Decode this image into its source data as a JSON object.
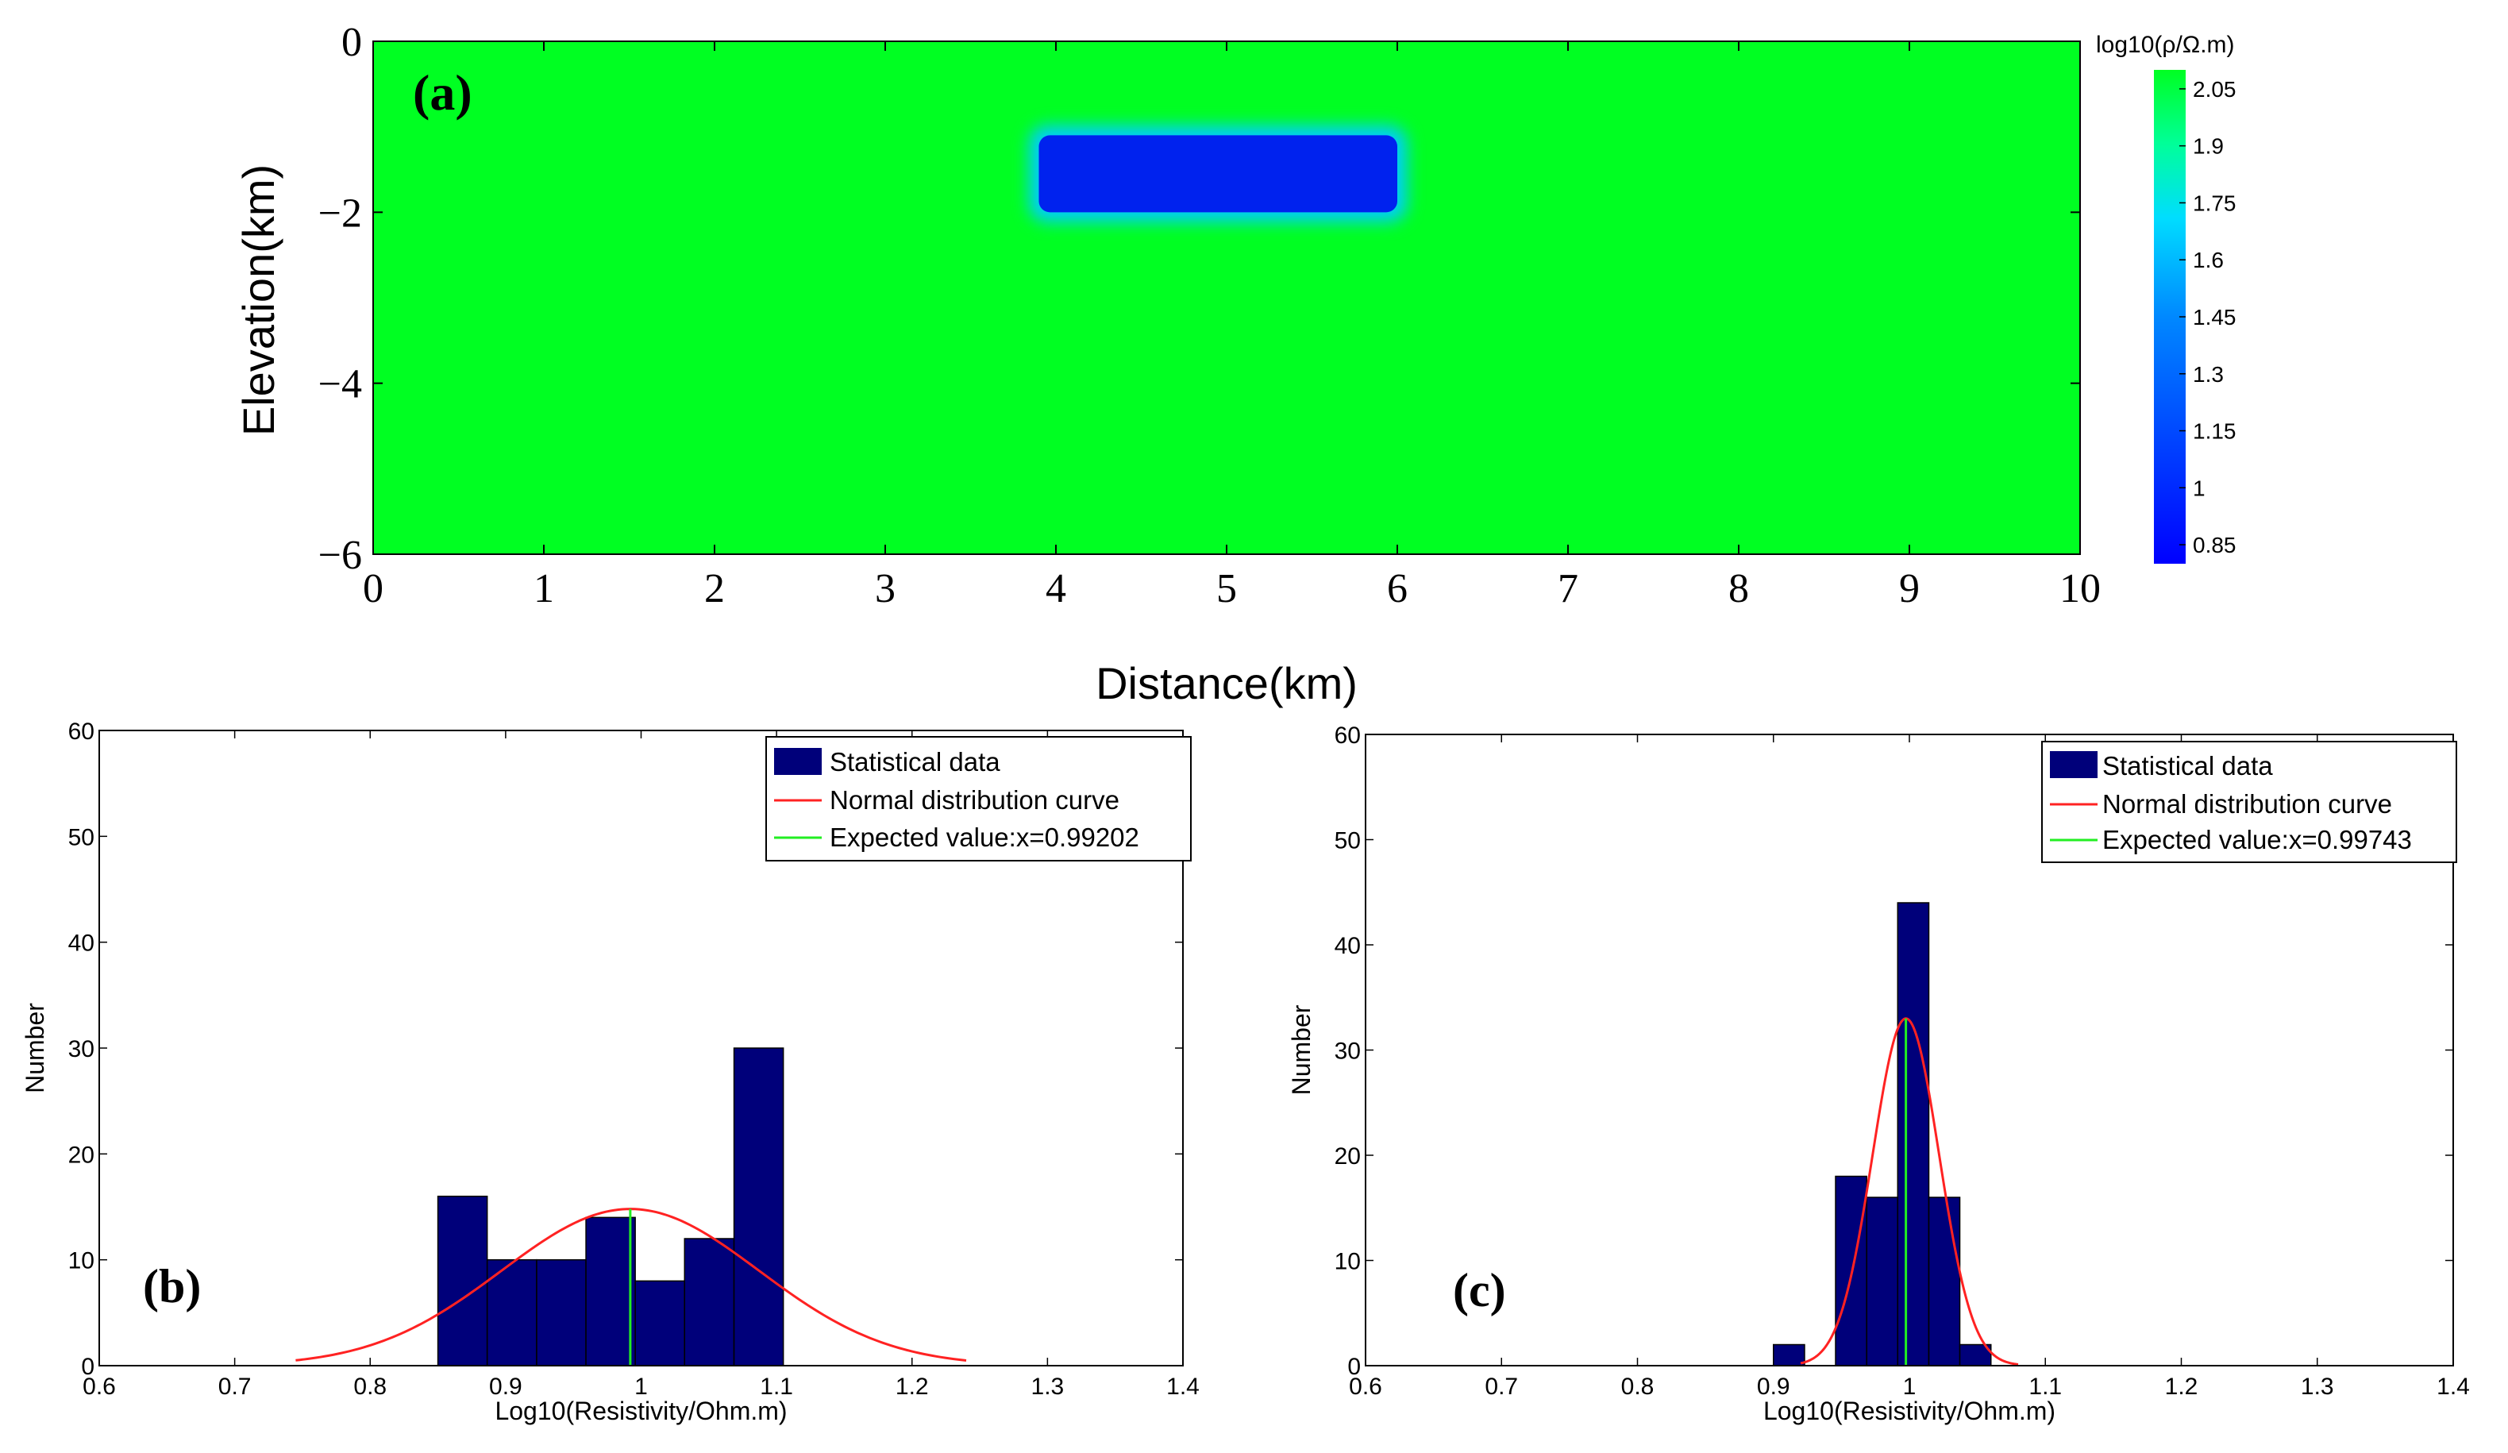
{
  "chart_data": [
    {
      "type": "heatmap",
      "panel": "(a)",
      "xlabel": "Distance(km)",
      "ylabel": "Elevation(km)",
      "xlim": [
        0,
        10
      ],
      "ylim": [
        -6,
        0
      ],
      "x_ticks": [
        0,
        1,
        2,
        3,
        4,
        5,
        6,
        7,
        8,
        9,
        10
      ],
      "y_ticks": [
        0,
        -2,
        -4,
        -6
      ],
      "y_tick_labels": [
        "0",
        "−2",
        "−4",
        "−6"
      ],
      "background_value": 2.1,
      "anomaly": {
        "x": [
          3.9,
          6.0
        ],
        "y": [
          -2.0,
          -1.1
        ],
        "value": 0.85
      },
      "colorbar": {
        "title": "log10(ρ/Ω.m)",
        "ticks": [
          "2.05",
          "1.9",
          "1.75",
          "1.6",
          "1.45",
          "1.3",
          "1.15",
          "1",
          "0.85"
        ],
        "range": [
          0.8,
          2.1
        ]
      }
    },
    {
      "type": "bar",
      "panel": "(b)",
      "xlabel": "Log10(Resistivity/Ohm.m)",
      "ylabel": "Number",
      "xlim": [
        0.6,
        1.4
      ],
      "ylim": [
        0,
        60
      ],
      "x_ticks": [
        "0.6",
        "0.7",
        "0.8",
        "0.9",
        "1",
        "1.1",
        "1.2",
        "1.3",
        "1.4"
      ],
      "y_ticks": [
        "0",
        "10",
        "20",
        "30",
        "40",
        "50",
        "60"
      ],
      "bin_edges": [
        0.85,
        0.8864,
        0.9229,
        0.9593,
        0.9957,
        1.0321,
        1.0686,
        1.105
      ],
      "counts": [
        16,
        10,
        10,
        14,
        8,
        12,
        30
      ],
      "normal_curve": {
        "mean": 0.99202,
        "sigma": 0.095,
        "peak": 14.8,
        "x_range": [
          0.745,
          1.24
        ]
      },
      "expected_value": 0.99202,
      "legend": [
        "Statistical data",
        "Normal distribution curve",
        "Expected value:x=0.99202"
      ]
    },
    {
      "type": "bar",
      "panel": "(c)",
      "xlabel": "Log10(Resistivity/Ohm.m)",
      "ylabel": "Number",
      "xlim": [
        0.6,
        1.4
      ],
      "ylim": [
        0,
        60
      ],
      "x_ticks": [
        "0.6",
        "0.7",
        "0.8",
        "0.9",
        "1",
        "1.1",
        "1.2",
        "1.3",
        "1.4"
      ],
      "y_ticks": [
        "0",
        "10",
        "20",
        "30",
        "40",
        "50",
        "60"
      ],
      "bin_edges": [
        0.9,
        0.9229,
        0.9457,
        0.9686,
        0.9914,
        1.0143,
        1.0371,
        1.06
      ],
      "counts": [
        2,
        0,
        18,
        16,
        44,
        16,
        2
      ],
      "normal_curve": {
        "mean": 0.99743,
        "sigma": 0.0245,
        "peak": 33,
        "x_range": [
          0.92,
          1.08
        ]
      },
      "expected_value": 0.99743,
      "legend": [
        "Statistical data",
        "Normal distribution curve",
        "Expected value:x=0.99743"
      ]
    }
  ],
  "colors": {
    "background_green": "#00ff22",
    "anomaly_blue": "#0022ee",
    "histogram_bar": "#00007a",
    "normal_curve": "#ff2222",
    "expected_line": "#22ee22"
  }
}
